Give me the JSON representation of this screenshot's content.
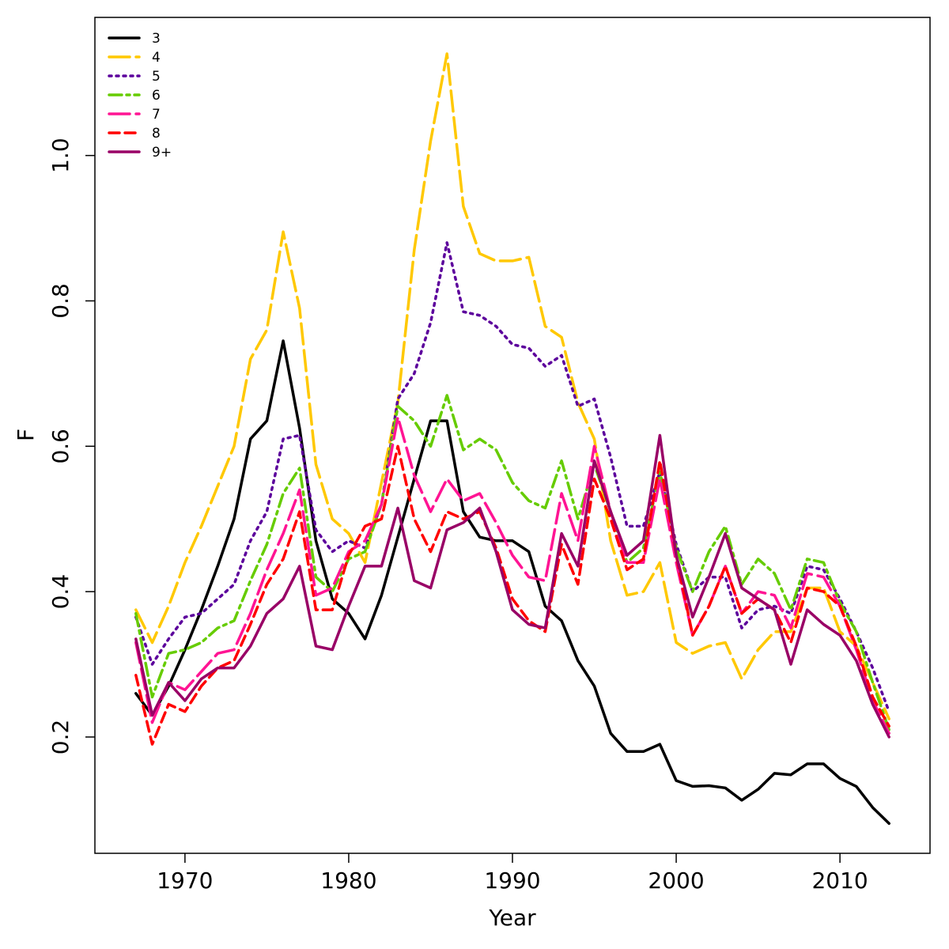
{
  "chart_data": {
    "type": "line",
    "title": "",
    "xlabel": "Year",
    "ylabel": "F",
    "xlim": [
      1964.5,
      2015.5
    ],
    "ylim": [
      0.04,
      1.19
    ],
    "xticks": [
      1970,
      1980,
      1990,
      2000,
      2010
    ],
    "yticks": [
      0.2,
      0.4,
      0.6,
      0.8,
      1.0
    ],
    "ytick_labels": [
      "0.2",
      "0.4",
      "0.6",
      "0.8",
      "1.0"
    ],
    "legend_position": "top-left",
    "x": [
      1967,
      1968,
      1969,
      1970,
      1971,
      1972,
      1973,
      1974,
      1975,
      1976,
      1977,
      1978,
      1979,
      1980,
      1981,
      1982,
      1983,
      1984,
      1985,
      1986,
      1987,
      1988,
      1989,
      1990,
      1991,
      1992,
      1993,
      1994,
      1995,
      1996,
      1997,
      1998,
      1999,
      2000,
      2001,
      2002,
      2003,
      2004,
      2005,
      2006,
      2007,
      2008,
      2009,
      2010,
      2011,
      2012,
      2013
    ],
    "series": [
      {
        "name": "3",
        "color": "#000000",
        "dash": "solid",
        "values": [
          0.26,
          0.23,
          0.27,
          0.32,
          0.375,
          0.435,
          0.5,
          0.61,
          0.635,
          0.745,
          0.625,
          0.47,
          0.39,
          0.37,
          0.335,
          0.395,
          0.475,
          0.555,
          0.635,
          0.635,
          0.51,
          0.475,
          0.47,
          0.47,
          0.455,
          0.38,
          0.36,
          0.305,
          0.27,
          0.205,
          0.18,
          0.18,
          0.19,
          0.14,
          0.132,
          0.133,
          0.13,
          0.113,
          0.128,
          0.15,
          0.148,
          0.163,
          0.163,
          0.143,
          0.132,
          0.103,
          0.081
        ]
      },
      {
        "name": "4",
        "color": "#ffc800",
        "dash": "long-dash",
        "values": [
          0.375,
          0.33,
          0.38,
          0.44,
          0.49,
          0.545,
          0.6,
          0.72,
          0.76,
          0.895,
          0.79,
          0.575,
          0.5,
          0.48,
          0.44,
          0.55,
          0.66,
          0.87,
          1.02,
          1.14,
          0.93,
          0.865,
          0.855,
          0.855,
          0.86,
          0.765,
          0.75,
          0.66,
          0.61,
          0.47,
          0.395,
          0.4,
          0.44,
          0.33,
          0.315,
          0.325,
          0.33,
          0.28,
          0.32,
          0.345,
          0.345,
          0.405,
          0.405,
          0.345,
          0.325,
          0.275,
          0.225
        ]
      },
      {
        "name": "5",
        "color": "#5c009c",
        "dash": "dotted",
        "values": [
          0.365,
          0.3,
          0.335,
          0.365,
          0.37,
          0.39,
          0.41,
          0.47,
          0.51,
          0.61,
          0.615,
          0.485,
          0.455,
          0.47,
          0.46,
          0.52,
          0.665,
          0.7,
          0.77,
          0.88,
          0.785,
          0.78,
          0.765,
          0.74,
          0.735,
          0.71,
          0.725,
          0.655,
          0.665,
          0.585,
          0.49,
          0.49,
          0.565,
          0.465,
          0.4,
          0.42,
          0.42,
          0.35,
          0.375,
          0.38,
          0.37,
          0.435,
          0.43,
          0.39,
          0.345,
          0.295,
          0.235
        ]
      },
      {
        "name": "6",
        "color": "#66cc00",
        "dash": "dash-dot",
        "values": [
          0.37,
          0.255,
          0.315,
          0.32,
          0.33,
          0.35,
          0.36,
          0.415,
          0.465,
          0.535,
          0.57,
          0.42,
          0.4,
          0.445,
          0.455,
          0.52,
          0.655,
          0.635,
          0.6,
          0.67,
          0.595,
          0.61,
          0.595,
          0.55,
          0.525,
          0.515,
          0.58,
          0.5,
          0.575,
          0.51,
          0.44,
          0.46,
          0.565,
          0.46,
          0.4,
          0.455,
          0.49,
          0.41,
          0.445,
          0.425,
          0.375,
          0.445,
          0.44,
          0.385,
          0.345,
          0.275,
          0.21
        ]
      },
      {
        "name": "7",
        "color": "#ff1493",
        "dash": "long-dash",
        "values": [
          0.33,
          0.22,
          0.275,
          0.265,
          0.29,
          0.315,
          0.32,
          0.37,
          0.43,
          0.48,
          0.54,
          0.395,
          0.405,
          0.455,
          0.47,
          0.52,
          0.64,
          0.56,
          0.51,
          0.555,
          0.525,
          0.535,
          0.495,
          0.45,
          0.42,
          0.415,
          0.535,
          0.47,
          0.6,
          0.51,
          0.44,
          0.44,
          0.555,
          0.44,
          0.34,
          0.38,
          0.435,
          0.37,
          0.4,
          0.395,
          0.35,
          0.425,
          0.42,
          0.38,
          0.32,
          0.25,
          0.205
        ]
      },
      {
        "name": "8",
        "color": "#ff0000",
        "dash": "dashed",
        "values": [
          0.285,
          0.19,
          0.245,
          0.235,
          0.27,
          0.295,
          0.305,
          0.355,
          0.41,
          0.445,
          0.51,
          0.375,
          0.375,
          0.45,
          0.49,
          0.5,
          0.6,
          0.5,
          0.455,
          0.51,
          0.5,
          0.51,
          0.46,
          0.39,
          0.36,
          0.345,
          0.465,
          0.41,
          0.555,
          0.5,
          0.43,
          0.445,
          0.58,
          0.45,
          0.34,
          0.38,
          0.435,
          0.37,
          0.39,
          0.375,
          0.33,
          0.405,
          0.4,
          0.38,
          0.325,
          0.255,
          0.215
        ]
      },
      {
        "name": "9+",
        "color": "#990066",
        "dash": "solid",
        "values": [
          0.335,
          0.23,
          0.275,
          0.25,
          0.28,
          0.295,
          0.295,
          0.325,
          0.37,
          0.39,
          0.435,
          0.325,
          0.32,
          0.38,
          0.435,
          0.435,
          0.515,
          0.415,
          0.405,
          0.485,
          0.495,
          0.515,
          0.455,
          0.375,
          0.355,
          0.35,
          0.48,
          0.435,
          0.58,
          0.51,
          0.45,
          0.47,
          0.615,
          0.45,
          0.365,
          0.42,
          0.48,
          0.405,
          0.39,
          0.375,
          0.3,
          0.375,
          0.355,
          0.34,
          0.305,
          0.245,
          0.2
        ]
      }
    ]
  }
}
